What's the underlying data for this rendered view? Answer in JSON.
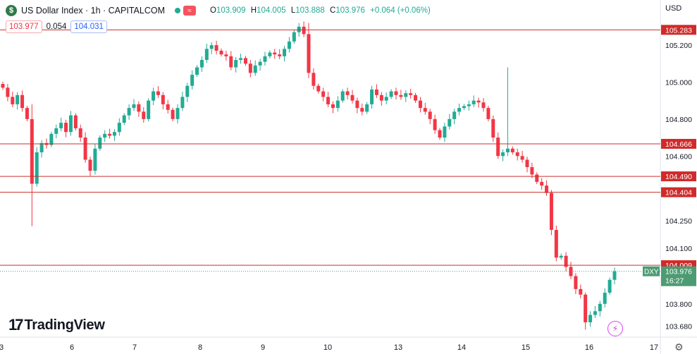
{
  "header": {
    "symbol_icon": "dollar-circle-icon",
    "title": "US Dollar Index · 1h · CAPITALCOM",
    "open_label": "O",
    "open": "103.909",
    "high_label": "H",
    "high": "104.005",
    "low_label": "L",
    "low": "103.888",
    "close_label": "C",
    "close": "103.976",
    "change": "+0.064 (+0.06%)"
  },
  "quote": {
    "bid": "103.977",
    "spread": "0.054",
    "ask": "104.031"
  },
  "currency": "USD",
  "logo_text": "TradingView",
  "colors": {
    "up": "#22ab94",
    "down": "#f23645",
    "level": "#c9302c",
    "current": "#4d9b73"
  },
  "chart_data": {
    "type": "candlestick",
    "symbol": "DXY",
    "timeframe": "1h",
    "ylim": [
      103.62,
      105.33
    ],
    "y_ticks": [
      "105.200",
      "105.000",
      "104.800",
      "104.600",
      "104.250",
      "104.100",
      "103.800",
      "103.680"
    ],
    "x_ticks": [
      "3",
      "6",
      "7",
      "8",
      "9",
      "10",
      "13",
      "14",
      "15",
      "16",
      "17"
    ],
    "horizontal_levels": [
      "105.283",
      "104.666",
      "104.490",
      "104.404",
      "104.009"
    ],
    "current_price": {
      "label": "DXY",
      "value": "103.976",
      "countdown": "16:27"
    },
    "close_path": [
      104.97,
      104.92,
      104.88,
      104.93,
      104.86,
      104.8,
      104.45,
      104.62,
      104.67,
      104.66,
      104.72,
      104.75,
      104.78,
      104.73,
      104.82,
      104.75,
      104.7,
      104.58,
      104.52,
      104.64,
      104.7,
      104.72,
      104.71,
      104.73,
      104.78,
      104.82,
      104.86,
      104.88,
      104.84,
      104.8,
      104.9,
      104.95,
      104.93,
      104.88,
      104.85,
      104.8,
      104.86,
      104.92,
      104.98,
      105.04,
      105.08,
      105.12,
      105.18,
      105.2,
      105.17,
      105.15,
      105.14,
      105.08,
      105.12,
      105.13,
      105.1,
      105.05,
      105.09,
      105.11,
      105.14,
      105.16,
      105.15,
      105.14,
      105.18,
      105.22,
      105.27,
      105.3,
      105.26,
      105.05,
      104.98,
      104.95,
      104.92,
      104.88,
      104.86,
      104.9,
      104.95,
      104.93,
      104.9,
      104.86,
      104.84,
      104.88,
      104.96,
      104.93,
      104.9,
      104.92,
      104.95,
      104.93,
      104.92,
      104.94,
      104.93,
      104.9,
      104.86,
      104.84,
      104.8,
      104.74,
      104.7,
      104.76,
      104.8,
      104.84,
      104.86,
      104.87,
      104.88,
      104.9,
      104.89,
      104.86,
      104.8,
      104.7,
      104.6,
      104.62,
      104.64,
      104.62,
      104.6,
      104.58,
      104.54,
      104.5,
      104.46,
      104.44,
      104.4,
      104.2,
      104.05,
      104.06,
      104.0,
      103.95,
      103.88,
      103.85,
      103.7,
      103.74,
      103.76,
      103.8,
      103.86,
      103.93,
      103.976
    ]
  }
}
